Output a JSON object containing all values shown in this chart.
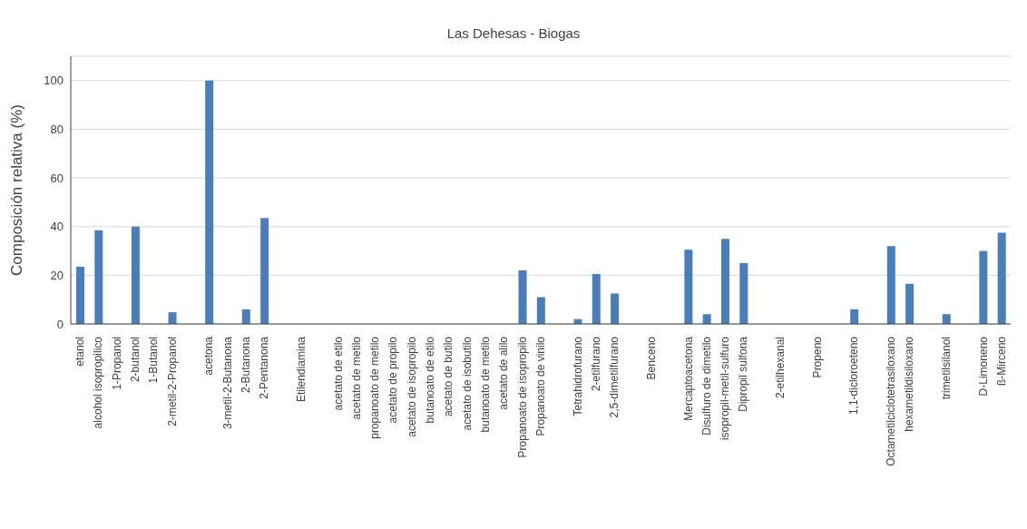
{
  "chart_data": {
    "type": "bar",
    "title": "Las Dehesas - Biogas",
    "ylabel": "Composición relativa (%)",
    "categories": [
      "etanol",
      "alcohol isopropilico",
      "1-Propanol",
      "2-butanol",
      "1-Butanol",
      "2-metil-2-Propanol",
      null,
      "acetona",
      "3-metil-2-Butanona",
      "2-Butanona",
      "2-Pentanona",
      null,
      "Etilendiamina",
      null,
      "acetato de etilo",
      "acetato de metilo",
      "propanoato de metilo",
      "acetato de propilo",
      "acetato de isopropilo",
      "butanoato de etilo",
      "acetato de butilo",
      "acetato de isobutilo",
      "butanoato de metilo",
      "acetato de alilo",
      "Propanoato de isopropilo",
      "Propanoato de vinilo",
      null,
      "Tetrahidrofurano",
      "2-etilfurano",
      "2,5-dimetilfurano",
      null,
      "Benceno",
      null,
      "Mercaptoacetona",
      "Disulfuro de dimetilo",
      "isopropil-metil-sulfuro",
      "Dipropil sulfona",
      null,
      "2-etilhexanal",
      null,
      "Propeno",
      null,
      "1,1-dicloroeteno",
      null,
      "Octametilciclotetrasiloxano",
      "hexametildisiloxano",
      null,
      "trimetilsilanol",
      null,
      "D-Limoneno",
      "ß-Mirceno"
    ],
    "values": [
      23.5,
      38.5,
      0,
      40,
      0,
      4.8,
      null,
      100,
      0,
      6,
      43.5,
      null,
      0,
      null,
      0,
      0,
      0,
      0,
      0,
      0,
      0,
      0,
      0,
      0,
      22,
      11,
      null,
      2,
      20.5,
      12.5,
      null,
      0,
      null,
      30.5,
      4,
      35,
      25,
      null,
      0,
      null,
      0,
      null,
      6,
      null,
      32,
      16.5,
      null,
      4,
      null,
      30,
      37.5
    ],
    "color": "#4a7ebb",
    "ylim": [
      0,
      110
    ],
    "yticks": [
      0,
      20,
      40,
      60,
      80,
      100
    ],
    "grid": "y"
  }
}
